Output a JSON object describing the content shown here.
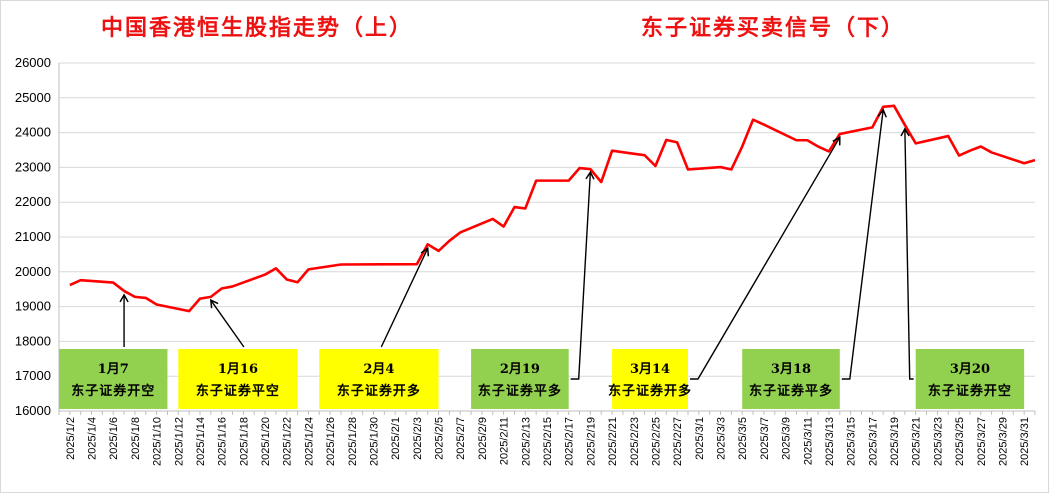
{
  "chart_data": {
    "type": "line",
    "title_left": "中国香港恒生股指走势（上）",
    "title_right": "东子证券买卖信号（下）",
    "ylim": [
      16000,
      26000
    ],
    "yticks": [
      16000,
      17000,
      18000,
      19000,
      20000,
      21000,
      22000,
      23000,
      24000,
      25000,
      26000
    ],
    "grid": true,
    "line_color": "#ff0000",
    "x_range": [
      "2025/1/1",
      "2025/4/1"
    ],
    "x_ticks": [
      "2025/1/2",
      "2025/1/4",
      "2025/1/6",
      "2025/1/8",
      "2025/1/10",
      "2025/1/12",
      "2025/1/14",
      "2025/1/16",
      "2025/1/18",
      "2025/1/20",
      "2025/1/22",
      "2025/1/24",
      "2025/1/26",
      "2025/1/28",
      "2025/1/30",
      "2025/2/1",
      "2025/2/3",
      "2025/2/5",
      "2025/2/7",
      "2025/2/9",
      "2025/2/11",
      "2025/2/13",
      "2025/2/15",
      "2025/2/17",
      "2025/2/19",
      "2025/2/21",
      "2025/2/23",
      "2025/2/25",
      "2025/2/27",
      "2025/3/1",
      "2025/3/3",
      "2025/3/5",
      "2025/3/7",
      "2025/3/9",
      "2025/3/11",
      "2025/3/13",
      "2025/3/15",
      "2025/3/17",
      "2025/3/19",
      "2025/3/21",
      "2025/3/23",
      "2025/3/25",
      "2025/3/27",
      "2025/3/29",
      "2025/3/31"
    ],
    "series": [
      {
        "points": [
          [
            "2025/1/2",
            19620
          ],
          [
            "2025/1/3",
            19760
          ],
          [
            "2025/1/6",
            19690
          ],
          [
            "2025/1/7",
            19450
          ],
          [
            "2025/1/8",
            19280
          ],
          [
            "2025/1/9",
            19250
          ],
          [
            "2025/1/10",
            19060
          ],
          [
            "2025/1/13",
            18870
          ],
          [
            "2025/1/14",
            19230
          ],
          [
            "2025/1/15",
            19280
          ],
          [
            "2025/1/16",
            19520
          ],
          [
            "2025/1/17",
            19580
          ],
          [
            "2025/1/20",
            19920
          ],
          [
            "2025/1/21",
            20100
          ],
          [
            "2025/1/22",
            19780
          ],
          [
            "2025/1/23",
            19700
          ],
          [
            "2025/1/24",
            20070
          ],
          [
            "2025/1/27",
            20210
          ],
          [
            "2025/2/3",
            20220
          ],
          [
            "2025/2/4",
            20790
          ],
          [
            "2025/2/5",
            20600
          ],
          [
            "2025/2/6",
            20890
          ],
          [
            "2025/2/7",
            21130
          ],
          [
            "2025/2/10",
            21520
          ],
          [
            "2025/2/11",
            21300
          ],
          [
            "2025/2/12",
            21860
          ],
          [
            "2025/2/13",
            21820
          ],
          [
            "2025/2/14",
            22620
          ],
          [
            "2025/2/17",
            22620
          ],
          [
            "2025/2/18",
            22980
          ],
          [
            "2025/2/19",
            22950
          ],
          [
            "2025/2/20",
            22580
          ],
          [
            "2025/2/21",
            23480
          ],
          [
            "2025/2/24",
            23350
          ],
          [
            "2025/2/25",
            23040
          ],
          [
            "2025/2/26",
            23790
          ],
          [
            "2025/2/27",
            23720
          ],
          [
            "2025/2/28",
            22940
          ],
          [
            "2025/3/3",
            23010
          ],
          [
            "2025/3/4",
            22940
          ],
          [
            "2025/3/5",
            23600
          ],
          [
            "2025/3/6",
            24370
          ],
          [
            "2025/3/7",
            24230
          ],
          [
            "2025/3/10",
            23780
          ],
          [
            "2025/3/11",
            23780
          ],
          [
            "2025/3/12",
            23600
          ],
          [
            "2025/3/13",
            23460
          ],
          [
            "2025/3/14",
            23960
          ],
          [
            "2025/3/17",
            24150
          ],
          [
            "2025/3/18",
            24740
          ],
          [
            "2025/3/19",
            24770
          ],
          [
            "2025/3/20",
            24220
          ],
          [
            "2025/3/21",
            23690
          ],
          [
            "2025/3/24",
            23900
          ],
          [
            "2025/3/25",
            23340
          ],
          [
            "2025/3/26",
            23480
          ],
          [
            "2025/3/27",
            23600
          ],
          [
            "2025/3/28",
            23430
          ],
          [
            "2025/3/31",
            23120
          ],
          [
            "2025/4/1",
            23210
          ]
        ]
      }
    ],
    "signals": [
      {
        "date_label": "1月7",
        "signal": "东子证券开空",
        "color": "#92d050",
        "from": "2025/1/1",
        "to": "2025/1/11",
        "target": [
          "2025/1/7",
          19450
        ],
        "anchor": "top"
      },
      {
        "date_label": "1月16",
        "signal": "东子证券平空",
        "color": "#ffff00",
        "from": "2025/1/12",
        "to": "2025/1/23",
        "target": [
          "2025/1/15",
          19300
        ],
        "anchor": "top"
      },
      {
        "date_label": "2月4",
        "signal": "东子证券开多",
        "color": "#ffff00",
        "from": "2025/1/25",
        "to": "2025/2/5",
        "target": [
          "2025/2/4",
          20790
        ],
        "anchor": "top"
      },
      {
        "date_label": "2月19",
        "signal": "东子证券平多",
        "color": "#92d050",
        "from": "2025/2/8",
        "to": "2025/2/17",
        "target": [
          "2025/2/19",
          22980
        ],
        "anchor": "right"
      },
      {
        "date_label": "3月14",
        "signal": "东子证券开多",
        "color": "#ffff00",
        "from": "2025/2/21",
        "to": "2025/2/28",
        "target": [
          "2025/3/14",
          23980
        ],
        "anchor": "right"
      },
      {
        "date_label": "3月18",
        "signal": "东子证券平多",
        "color": "#92d050",
        "from": "2025/3/5",
        "to": "2025/3/14",
        "target": [
          "2025/3/18",
          24770
        ],
        "anchor": "right"
      },
      {
        "date_label": "3月20",
        "signal": "东子证券开空",
        "color": "#92d050",
        "from": "2025/3/21",
        "to": "2025/3/31",
        "target": [
          "2025/3/20",
          24220
        ],
        "anchor": "left"
      }
    ]
  }
}
